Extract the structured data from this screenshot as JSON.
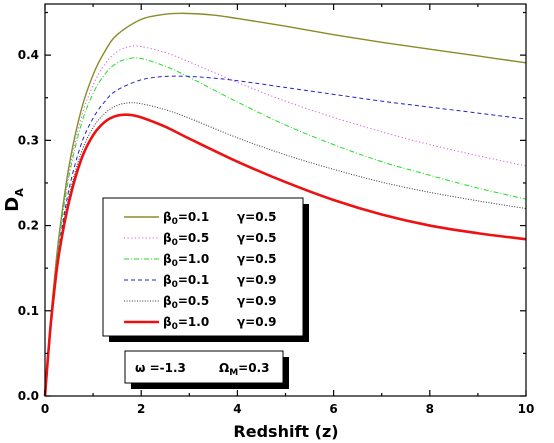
{
  "chart_data": {
    "type": "line",
    "title": "",
    "xlabel": "Redshift (z)",
    "ylabel": "D",
    "ylabel_sub": "A",
    "xlim": [
      0,
      10
    ],
    "ylim": [
      0,
      0.46
    ],
    "x_ticks": [
      0,
      2,
      4,
      6,
      8,
      10
    ],
    "y_ticks": [
      0.0,
      0.1,
      0.2,
      0.3,
      0.4
    ],
    "x_tick_labels": [
      "0",
      "2",
      "4",
      "6",
      "8",
      "10"
    ],
    "y_tick_labels": [
      "0.0",
      "0.1",
      "0.2",
      "0.3",
      "0.4"
    ],
    "grid": false,
    "legend_position": "lower-left",
    "series": [
      {
        "beta_label": "β",
        "beta_sub": "0",
        "beta_value": "=0.1",
        "gamma_label": "γ=0.5",
        "color": "#8B8B2A",
        "dash": "solid",
        "width": 1.4,
        "x": [
          0,
          0.1,
          0.2,
          0.3,
          0.5,
          0.75,
          1,
          1.25,
          1.5,
          2,
          2.5,
          2.9,
          3.5,
          4,
          5,
          6,
          7,
          8,
          9,
          10
        ],
        "y": [
          0,
          0.077,
          0.14,
          0.192,
          0.27,
          0.335,
          0.377,
          0.405,
          0.424,
          0.442,
          0.448,
          0.449,
          0.447,
          0.443,
          0.434,
          0.424,
          0.415,
          0.407,
          0.399,
          0.391
        ]
      },
      {
        "beta_label": "β",
        "beta_sub": "0",
        "beta_value": "=0.5",
        "gamma_label": "γ=0.5",
        "color": "#E055E0",
        "dash": "dotted",
        "width": 1.0,
        "x": [
          0,
          0.1,
          0.2,
          0.3,
          0.5,
          0.75,
          1,
          1.25,
          1.5,
          1.75,
          2,
          2.5,
          3,
          4,
          5,
          6,
          7,
          8,
          9,
          10
        ],
        "y": [
          0,
          0.076,
          0.138,
          0.188,
          0.263,
          0.326,
          0.365,
          0.39,
          0.404,
          0.41,
          0.41,
          0.403,
          0.392,
          0.368,
          0.346,
          0.327,
          0.31,
          0.295,
          0.282,
          0.27
        ]
      },
      {
        "beta_label": "β",
        "beta_sub": "0",
        "beta_value": "=1.0",
        "gamma_label": "γ=0.5",
        "color": "#22DD22",
        "dash": "dashdot",
        "width": 1.0,
        "x": [
          0,
          0.1,
          0.2,
          0.3,
          0.5,
          0.75,
          1,
          1.25,
          1.5,
          1.75,
          2,
          2.5,
          3,
          4,
          5,
          6,
          7,
          8,
          9,
          10
        ],
        "y": [
          0,
          0.075,
          0.136,
          0.186,
          0.258,
          0.318,
          0.355,
          0.378,
          0.391,
          0.396,
          0.396,
          0.387,
          0.374,
          0.345,
          0.318,
          0.295,
          0.275,
          0.259,
          0.244,
          0.231
        ]
      },
      {
        "beta_label": "β",
        "beta_sub": "0",
        "beta_value": "=0.1",
        "gamma_label": "γ=0.9",
        "color": "#2222CC",
        "dash": "dashed",
        "width": 1.0,
        "x": [
          0,
          0.1,
          0.2,
          0.3,
          0.5,
          0.75,
          1,
          1.25,
          1.5,
          2,
          2.5,
          3,
          3.5,
          4,
          5,
          6,
          7,
          8,
          9,
          10
        ],
        "y": [
          0,
          0.074,
          0.132,
          0.178,
          0.243,
          0.295,
          0.326,
          0.346,
          0.359,
          0.371,
          0.375,
          0.375,
          0.373,
          0.37,
          0.362,
          0.354,
          0.346,
          0.339,
          0.332,
          0.325
        ]
      },
      {
        "beta_label": "β",
        "beta_sub": "0",
        "beta_value": "=0.5",
        "gamma_label": "γ=0.9",
        "color": "#333333",
        "dash": "dotted-dense",
        "width": 1.0,
        "x": [
          0,
          0.1,
          0.2,
          0.3,
          0.5,
          0.75,
          1,
          1.25,
          1.5,
          1.75,
          2,
          2.5,
          3,
          4,
          5,
          6,
          7,
          8,
          9,
          10
        ],
        "y": [
          0,
          0.073,
          0.13,
          0.174,
          0.235,
          0.285,
          0.315,
          0.332,
          0.341,
          0.344,
          0.343,
          0.336,
          0.326,
          0.303,
          0.283,
          0.266,
          0.251,
          0.239,
          0.229,
          0.22
        ]
      },
      {
        "beta_label": "β",
        "beta_sub": "0",
        "beta_value": "=1.0",
        "gamma_label": "γ=0.9",
        "color": "#EE1111",
        "dash": "solid",
        "width": 2.6,
        "x": [
          0,
          0.1,
          0.2,
          0.3,
          0.5,
          0.75,
          1,
          1.25,
          1.5,
          1.75,
          2,
          2.5,
          3,
          4,
          5,
          6,
          7,
          8,
          9,
          10
        ],
        "y": [
          0,
          0.072,
          0.127,
          0.17,
          0.228,
          0.277,
          0.306,
          0.322,
          0.329,
          0.33,
          0.327,
          0.316,
          0.302,
          0.275,
          0.251,
          0.23,
          0.213,
          0.2,
          0.191,
          0.184
        ]
      }
    ],
    "annotation": {
      "omega": "ω =-1.3",
      "omega_m_label": "Ω",
      "omega_m_sub": "M",
      "omega_m_value": "=0.3"
    }
  }
}
